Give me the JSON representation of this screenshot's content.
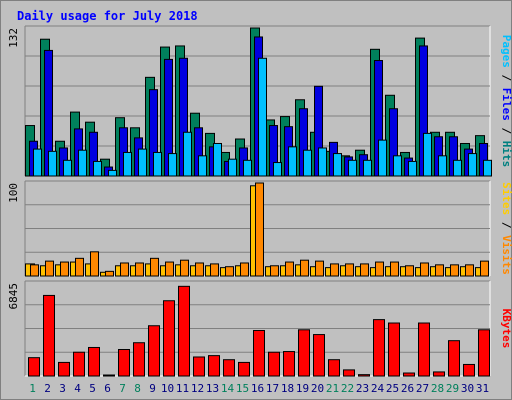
{
  "chart_data": {
    "type": "bar",
    "title": "Daily usage for July 2018",
    "categories": [
      "1",
      "2",
      "3",
      "4",
      "5",
      "6",
      "7",
      "8",
      "9",
      "10",
      "11",
      "12",
      "13",
      "14",
      "15",
      "16",
      "17",
      "18",
      "19",
      "20",
      "21",
      "22",
      "23",
      "24",
      "25",
      "26",
      "27",
      "28",
      "29",
      "30",
      "31"
    ],
    "weekend_days": [
      "1",
      "7",
      "8",
      "14",
      "15",
      "21",
      "22",
      "28",
      "29"
    ],
    "panels": [
      {
        "id": "hits",
        "ymax": 132,
        "ymax_label": "132",
        "side_label": [
          {
            "text": "Pages",
            "color": "#00c0ff"
          },
          {
            "text": " / ",
            "color": "#000000"
          },
          {
            "text": "Files",
            "color": "#0000ff"
          },
          {
            "text": " / ",
            "color": "#000000"
          },
          {
            "text": "Hits",
            "color": "#008080"
          }
        ],
        "series": [
          {
            "name": "Hits",
            "color": "#00805c",
            "values": [
              45,
              122,
              31,
              57,
              48,
              15,
              52,
              43,
              88,
              115,
              116,
              56,
              38,
              21,
              33,
              132,
              50,
              53,
              68,
              39,
              22,
              18,
              23,
              113,
              72,
              21,
              123,
              39,
              39,
              29,
              36
            ]
          },
          {
            "name": "Files",
            "color": "#0000e0",
            "values": [
              31,
              112,
              25,
              42,
              39,
              8,
              43,
              34,
              77,
              104,
              105,
              43,
              26,
              13,
              25,
              124,
              45,
              44,
              60,
              80,
              30,
              17,
              19,
              103,
              60,
              16,
              116,
              35,
              35,
              24,
              29
            ]
          },
          {
            "name": "Pages",
            "color": "#00c0ff",
            "values": [
              24,
              22,
              14,
              23,
              13,
              5,
              21,
              24,
              21,
              20,
              39,
              18,
              29,
              15,
              14,
              105,
              12,
              26,
              23,
              25,
              20,
              14,
              14,
              32,
              18,
              13,
              38,
              18,
              14,
              20,
              14
            ]
          }
        ]
      },
      {
        "id": "visits",
        "ymax": 100,
        "ymax_label": "100",
        "side_label": [
          {
            "text": "Sites",
            "color": "#ffcc00"
          },
          {
            "text": " / ",
            "color": "#000000"
          },
          {
            "text": "Visits",
            "color": "#ff8800"
          }
        ],
        "series": [
          {
            "name": "Sites",
            "color": "#ffc000",
            "values": [
              13,
              11,
              12,
              15,
              13,
              4,
              11,
              11,
              13,
              11,
              12,
              11,
              11,
              9,
              11,
              97,
              10,
              11,
              12,
              10,
              9,
              11,
              10,
              9,
              10,
              10,
              9,
              10,
              9,
              10,
              9
            ]
          },
          {
            "name": "Visits",
            "color": "#ff8800",
            "values": [
              12,
              16,
              15,
              19,
              26,
              5,
              14,
              14,
              19,
              15,
              17,
              14,
              13,
              10,
              14,
              100,
              11,
              15,
              17,
              16,
              13,
              13,
              13,
              15,
              15,
              11,
              14,
              12,
              12,
              12,
              16
            ]
          }
        ]
      },
      {
        "id": "kbytes",
        "ymax": 6845,
        "ymax_label": "6845",
        "side_label": [
          {
            "text": "KBytes",
            "color": "#ff0000"
          }
        ],
        "series": [
          {
            "name": "KBytes",
            "color": "#ff0000",
            "values": [
              1350,
              5930,
              1000,
              1750,
              2100,
              30,
              1950,
              2450,
              3700,
              5540,
              6600,
              1400,
              1500,
              1200,
              1000,
              3350,
              1750,
              1800,
              3400,
              3050,
              1200,
              450,
              100,
              4150,
              3900,
              220,
              3900,
              300,
              2600,
              850,
              3400
            ]
          }
        ]
      }
    ]
  }
}
